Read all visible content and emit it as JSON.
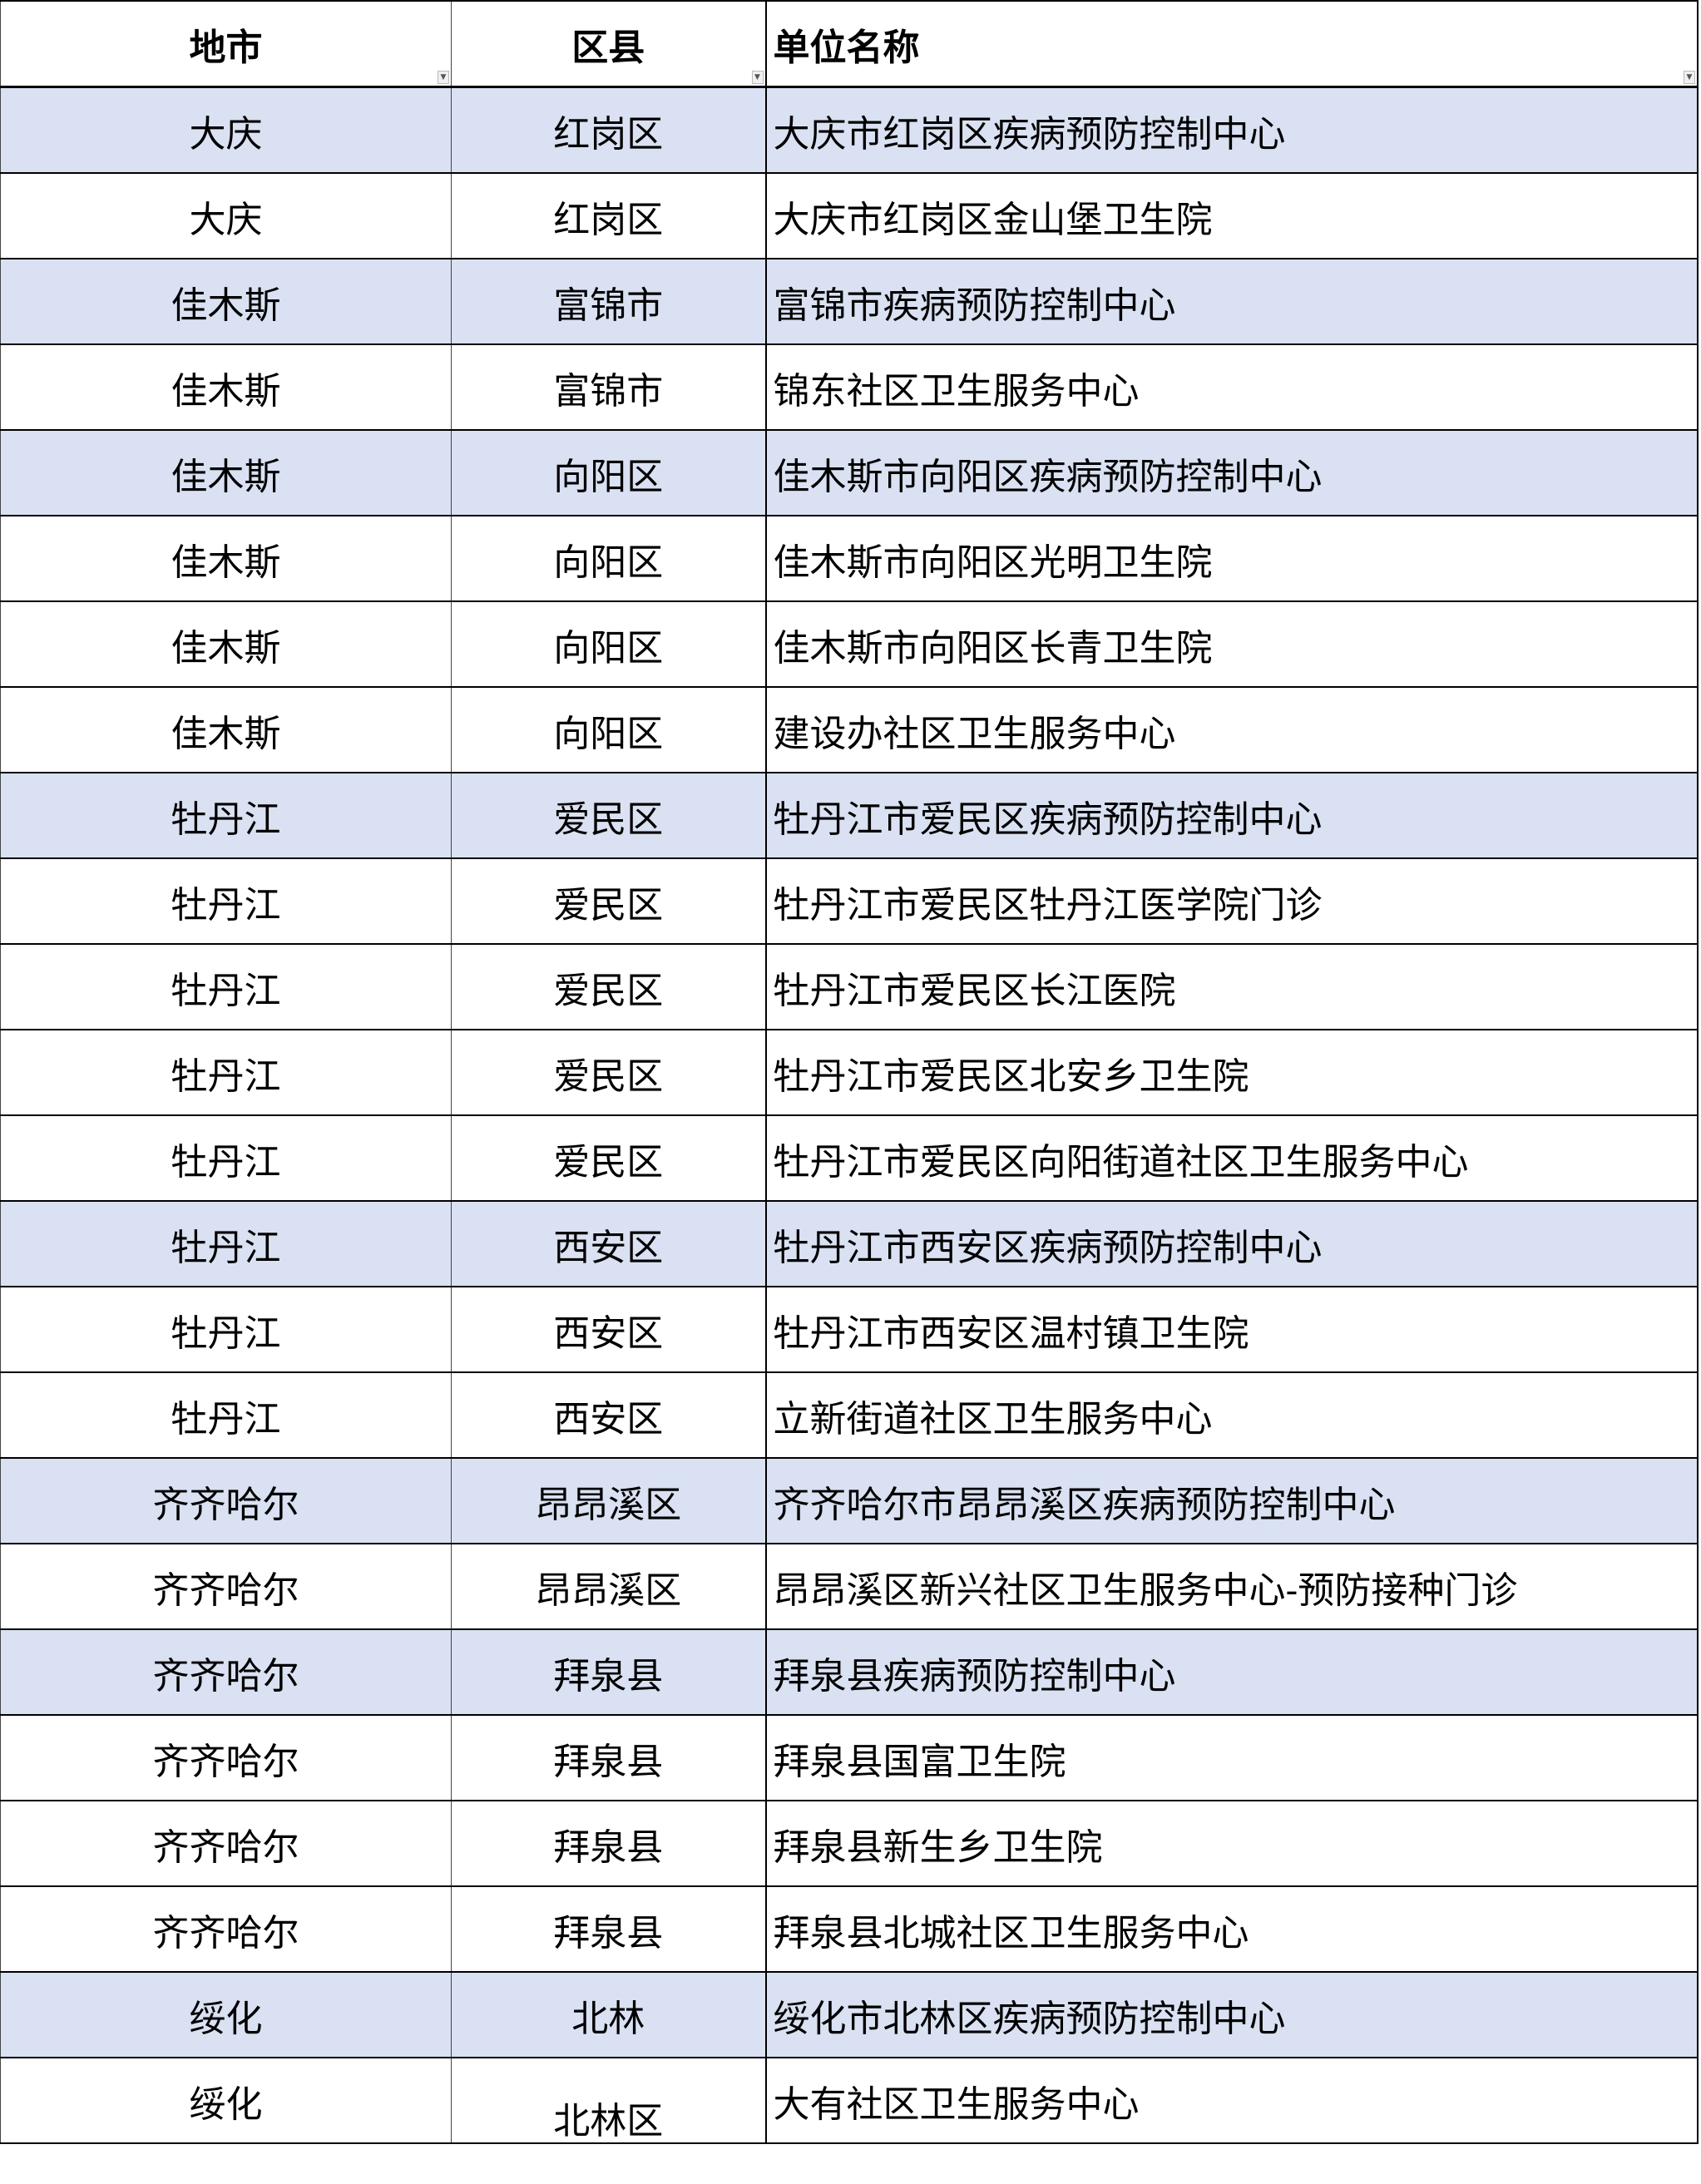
{
  "header": {
    "city": "地市",
    "district": "区县",
    "unit": "单位名称"
  },
  "filter_icon": "dropdown-arrow-icon",
  "highlight_color": "#D9E1F2",
  "rows": [
    {
      "city": "大庆",
      "district": "红岗区",
      "unit": "大庆市红岗区疾病预防控制中心",
      "highlight": true
    },
    {
      "city": "大庆",
      "district": "红岗区",
      "unit": "大庆市红岗区金山堡卫生院",
      "highlight": false
    },
    {
      "city": "佳木斯",
      "district": "富锦市",
      "unit": "富锦市疾病预防控制中心",
      "highlight": true
    },
    {
      "city": "佳木斯",
      "district": "富锦市",
      "unit": "锦东社区卫生服务中心",
      "highlight": false
    },
    {
      "city": "佳木斯",
      "district": "向阳区",
      "unit": "佳木斯市向阳区疾病预防控制中心",
      "highlight": true
    },
    {
      "city": "佳木斯",
      "district": "向阳区",
      "unit": "佳木斯市向阳区光明卫生院",
      "highlight": false
    },
    {
      "city": "佳木斯",
      "district": "向阳区",
      "unit": "佳木斯市向阳区长青卫生院",
      "highlight": false
    },
    {
      "city": "佳木斯",
      "district": "向阳区",
      "unit": "建设办社区卫生服务中心",
      "highlight": false
    },
    {
      "city": "牡丹江",
      "district": "爱民区",
      "unit": "牡丹江市爱民区疾病预防控制中心",
      "highlight": true
    },
    {
      "city": "牡丹江",
      "district": "爱民区",
      "unit": "牡丹江市爱民区牡丹江医学院门诊",
      "highlight": false
    },
    {
      "city": "牡丹江",
      "district": "爱民区",
      "unit": "牡丹江市爱民区长江医院",
      "highlight": false
    },
    {
      "city": "牡丹江",
      "district": "爱民区",
      "unit": "牡丹江市爱民区北安乡卫生院",
      "highlight": false
    },
    {
      "city": "牡丹江",
      "district": "爱民区",
      "unit": "牡丹江市爱民区向阳街道社区卫生服务中心",
      "highlight": false
    },
    {
      "city": "牡丹江",
      "district": "西安区",
      "unit": "牡丹江市西安区疾病预防控制中心",
      "highlight": true
    },
    {
      "city": "牡丹江",
      "district": "西安区",
      "unit": "牡丹江市西安区温村镇卫生院",
      "highlight": false
    },
    {
      "city": "牡丹江",
      "district": "西安区",
      "unit": "立新街道社区卫生服务中心",
      "highlight": false
    },
    {
      "city": "齐齐哈尔",
      "district": "昂昂溪区",
      "unit": "齐齐哈尔市昂昂溪区疾病预防控制中心",
      "highlight": true
    },
    {
      "city": "齐齐哈尔",
      "district": "昂昂溪区",
      "unit": "昂昂溪区新兴社区卫生服务中心-预防接种门诊",
      "highlight": false
    },
    {
      "city": "齐齐哈尔",
      "district": "拜泉县",
      "unit": "拜泉县疾病预防控制中心",
      "highlight": true
    },
    {
      "city": "齐齐哈尔",
      "district": "拜泉县",
      "unit": "拜泉县国富卫生院",
      "highlight": false
    },
    {
      "city": "齐齐哈尔",
      "district": "拜泉县",
      "unit": "拜泉县新生乡卫生院",
      "highlight": false
    },
    {
      "city": "齐齐哈尔",
      "district": "拜泉县",
      "unit": "拜泉县北城社区卫生服务中心",
      "highlight": false
    },
    {
      "city": "绥化",
      "district": "北林",
      "unit": "绥化市北林区疾病预防控制中心",
      "highlight": true
    },
    {
      "city": "绥化",
      "district": "北林区",
      "unit": "大有社区卫生服务中心",
      "highlight": false,
      "district_low": true
    }
  ]
}
